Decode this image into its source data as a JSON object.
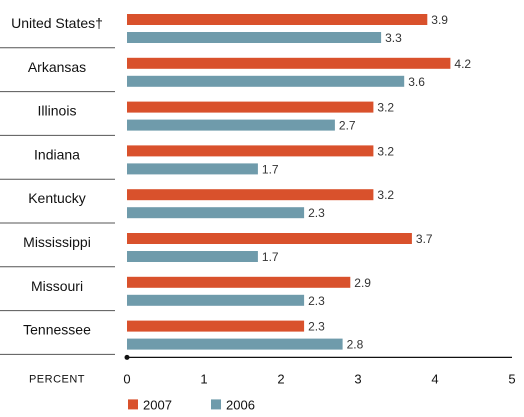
{
  "chart_data": {
    "type": "bar",
    "orientation": "horizontal",
    "categories": [
      "United States†",
      "Arkansas",
      "Illinois",
      "Indiana",
      "Kentucky",
      "Mississippi",
      "Missouri",
      "Tennessee"
    ],
    "series": [
      {
        "name": "2007",
        "color": "#d9512c",
        "values": [
          3.9,
          4.2,
          3.2,
          3.2,
          3.2,
          3.7,
          2.9,
          2.3
        ]
      },
      {
        "name": "2006",
        "color": "#6f9bab",
        "values": [
          3.3,
          3.6,
          2.7,
          1.7,
          2.3,
          1.7,
          2.3,
          2.8
        ]
      }
    ],
    "xlabel": "PERCENT",
    "xlim": [
      0,
      5
    ],
    "xticks": [
      "0",
      "1",
      "2",
      "3",
      "4",
      "5"
    ],
    "legend_position": "bottom-left",
    "grid": false
  }
}
